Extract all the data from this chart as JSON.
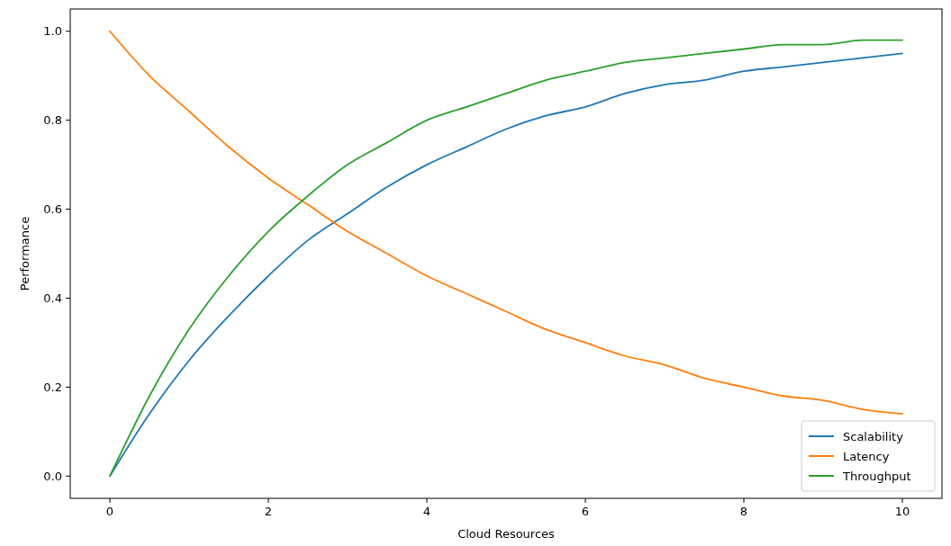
{
  "chart_data": {
    "type": "line",
    "xlabel": "Cloud Resources",
    "ylabel": "Performance",
    "x": [
      0,
      0.5,
      1,
      1.5,
      2,
      2.5,
      3,
      3.5,
      4,
      4.5,
      5,
      5.5,
      6,
      6.5,
      7,
      7.5,
      8,
      8.5,
      9,
      9.5,
      10
    ],
    "series": [
      {
        "name": "Scalability",
        "color": "#1f77b4",
        "values": [
          0,
          0.14,
          0.26,
          0.36,
          0.45,
          0.53,
          0.59,
          0.65,
          0.7,
          0.74,
          0.78,
          0.81,
          0.83,
          0.86,
          0.88,
          0.89,
          0.91,
          0.92,
          0.93,
          0.94,
          0.95
        ]
      },
      {
        "name": "Latency",
        "color": "#ff7f0e",
        "values": [
          1,
          0.9,
          0.82,
          0.74,
          0.67,
          0.61,
          0.55,
          0.5,
          0.45,
          0.41,
          0.37,
          0.33,
          0.3,
          0.27,
          0.25,
          0.22,
          0.2,
          0.18,
          0.17,
          0.15,
          0.14
        ]
      },
      {
        "name": "Throughput",
        "color": "#2ca02c",
        "values": [
          0,
          0.18,
          0.33,
          0.45,
          0.55,
          0.63,
          0.7,
          0.75,
          0.8,
          0.83,
          0.86,
          0.89,
          0.91,
          0.93,
          0.94,
          0.95,
          0.96,
          0.97,
          0.97,
          0.98,
          0.98
        ]
      }
    ],
    "xlim": [
      -0.5,
      10.5
    ],
    "ylim": [
      -0.05,
      1.05
    ],
    "xticks": [
      0,
      2,
      4,
      6,
      8,
      10
    ],
    "yticks": [
      {
        "value": 0,
        "label": "0.0"
      },
      0.2,
      0.4,
      0.6,
      0.8,
      {
        "value": 1,
        "label": "1.0"
      }
    ],
    "legend": "bottom right",
    "grid": false,
    "marker": "none",
    "line_style": "solid"
  }
}
